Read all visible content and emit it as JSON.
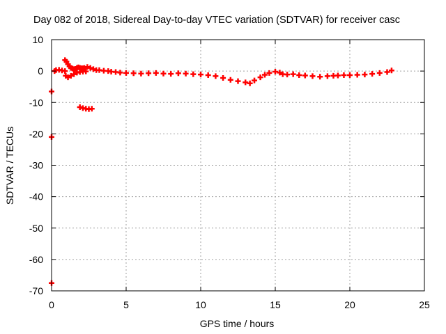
{
  "chart_data": {
    "type": "scatter",
    "title": "Day 082 of 2018, Sidereal Day-to-day VTEC variation (SDTVAR) for receiver casc",
    "xlabel": "GPS time / hours",
    "ylabel": "SDTVAR / TECUs",
    "xlim": [
      0,
      25
    ],
    "ylim": [
      -70,
      10
    ],
    "xticks": [
      0,
      5,
      10,
      15,
      20,
      25
    ],
    "yticks": [
      -70,
      -60,
      -50,
      -40,
      -30,
      -20,
      -10,
      0,
      10
    ],
    "grid": true,
    "marker_color": "#ff0000",
    "series": [
      {
        "name": "SDTVAR",
        "x": [
          0.0,
          0.0,
          0.0,
          0.2,
          0.3,
          0.5,
          0.7,
          0.9,
          0.9,
          0.95,
          1.0,
          1.1,
          1.2,
          1.3,
          1.4,
          1.5,
          1.6,
          1.7,
          1.8,
          1.9,
          2.0,
          2.1,
          2.2,
          2.4,
          2.6,
          2.8,
          3.0,
          3.2,
          3.5,
          3.8,
          4.0,
          4.3,
          4.6,
          5.0,
          5.5,
          6.0,
          6.5,
          7.0,
          7.5,
          8.0,
          8.5,
          9.0,
          9.5,
          10.0,
          10.5,
          11.0,
          11.5,
          12.0,
          12.5,
          13.0,
          13.3,
          13.6,
          14.0,
          14.3,
          14.6,
          15.0,
          15.3,
          15.5,
          15.8,
          16.2,
          16.6,
          17.0,
          17.5,
          18.0,
          18.5,
          18.9,
          19.2,
          19.6,
          20.0,
          20.5,
          21.0,
          21.5,
          22.0,
          22.5,
          22.8,
          1.1,
          1.3,
          1.5,
          1.7,
          1.9,
          2.1,
          2.3,
          1.9,
          2.1,
          2.3,
          2.5,
          2.7
        ],
        "values": [
          -6.5,
          -21,
          -67.5,
          0.0,
          0.3,
          0.4,
          0.2,
          0.0,
          3.5,
          -1.5,
          3.0,
          2.2,
          1.5,
          1.0,
          0.8,
          0.6,
          0.7,
          1.0,
          1.2,
          1.0,
          0.9,
          0.9,
          1.0,
          1.3,
          1.0,
          0.6,
          0.3,
          0.3,
          0.1,
          0.0,
          -0.2,
          -0.3,
          -0.5,
          -0.6,
          -0.7,
          -0.8,
          -0.7,
          -0.6,
          -0.8,
          -0.9,
          -0.7,
          -0.8,
          -1.0,
          -1.1,
          -1.3,
          -1.6,
          -2.2,
          -2.8,
          -3.2,
          -3.6,
          -3.9,
          -3.0,
          -2.0,
          -1.2,
          -0.6,
          -0.2,
          -0.5,
          -1.0,
          -1.1,
          -1.0,
          -1.3,
          -1.4,
          -1.6,
          -1.8,
          -1.6,
          -1.5,
          -1.4,
          -1.3,
          -1.3,
          -1.2,
          -1.1,
          -0.9,
          -0.6,
          -0.3,
          0.2,
          -2.0,
          -1.5,
          -1.0,
          -0.5,
          -0.3,
          -0.2,
          -0.1,
          -11.5,
          -11.8,
          -12.0,
          -12.1,
          -12.0
        ]
      }
    ]
  }
}
